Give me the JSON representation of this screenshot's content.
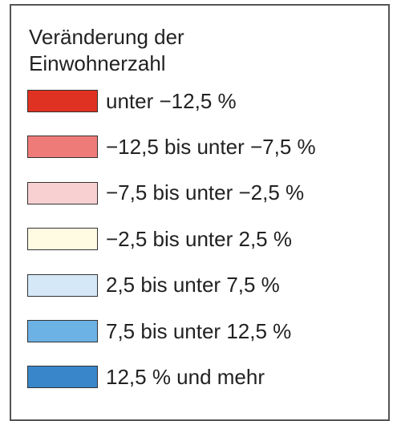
{
  "legend": {
    "title_lines": [
      "Veränderung der",
      "Einwohnerzahl"
    ],
    "items": [
      {
        "label": "unter −12,5 %",
        "color": "#e03222"
      },
      {
        "label": "−12,5 bis unter −7,5 %",
        "color": "#ef7b79"
      },
      {
        "label": "−7,5 bis unter −2,5 %",
        "color": "#f9d0d1"
      },
      {
        "label": "−2,5 bis unter 2,5 %",
        "color": "#fffbe2"
      },
      {
        "label": "2,5 bis unter 7,5 %",
        "color": "#d4e8f7"
      },
      {
        "label": "7,5 bis unter 12,5 %",
        "color": "#6cb2e5"
      },
      {
        "label": "12,5 % und mehr",
        "color": "#3a86cb"
      }
    ]
  }
}
